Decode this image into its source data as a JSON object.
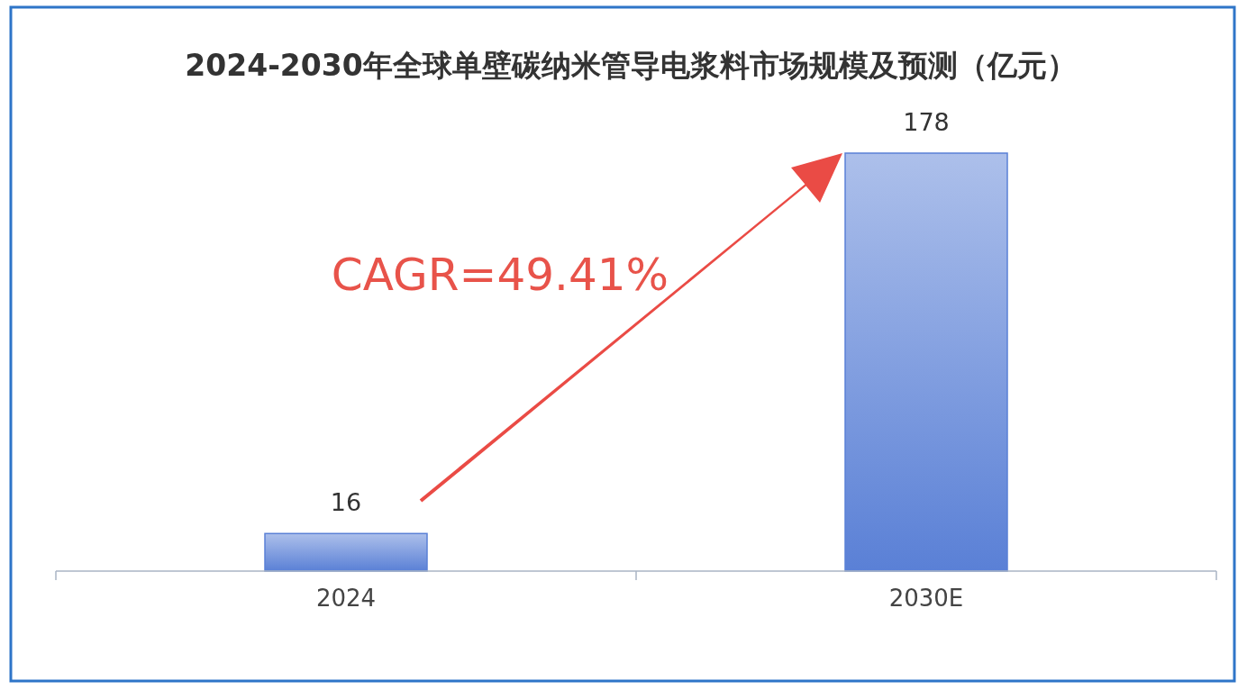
{
  "chart_data": {
    "type": "bar",
    "title": "2024-2030年全球单壁碳纳米管导电浆料市场规模及预测（亿元）",
    "categories": [
      "2024",
      "2030E"
    ],
    "values": [
      16,
      178
    ],
    "color": "#5a80d6",
    "data_labels": true,
    "annotations": [
      "CAGR=49.41%"
    ]
  }
}
